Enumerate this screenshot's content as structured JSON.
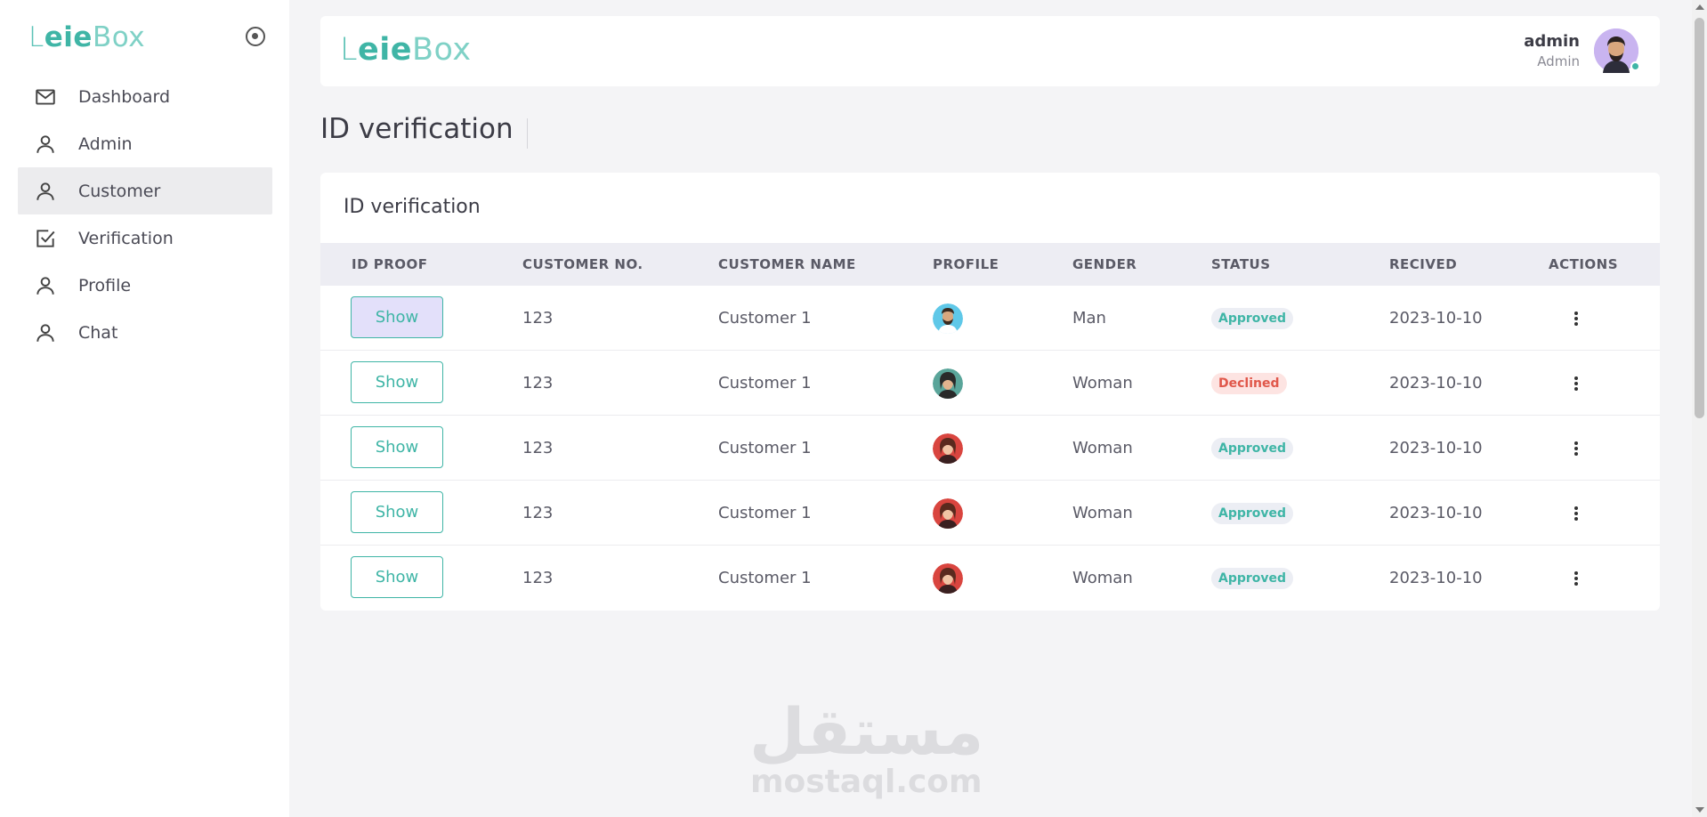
{
  "brand": {
    "logo_l": "L",
    "logo_eie": "eie",
    "logo_box": "Box"
  },
  "sidebar": {
    "items": [
      {
        "label": "Dashboard",
        "icon": "mail-icon"
      },
      {
        "label": "Admin",
        "icon": "user-icon"
      },
      {
        "label": "Customer",
        "icon": "user-icon",
        "active": true
      },
      {
        "label": "Verification",
        "icon": "checkbox-icon"
      },
      {
        "label": "Profile",
        "icon": "user-icon"
      },
      {
        "label": "Chat",
        "icon": "user-icon"
      }
    ]
  },
  "header": {
    "user_name": "admin",
    "user_role": "Admin"
  },
  "page": {
    "title": "ID verification"
  },
  "card": {
    "title": "ID verification",
    "columns": [
      "ID PROOF",
      "CUSTOMER NO.",
      "CUSTOMER NAME",
      "PROFILE",
      "GENDER",
      "STATUS",
      "RECIVED",
      "ACTIONS"
    ],
    "rows": [
      {
        "proof": "Show",
        "number": "123",
        "name": "Customer 1",
        "gender": "Man",
        "status": "Approved",
        "received": "2023-10-10"
      },
      {
        "proof": "Show",
        "number": "123",
        "name": "Customer 1",
        "gender": "Woman",
        "status": "Declined",
        "received": "2023-10-10"
      },
      {
        "proof": "Show",
        "number": "123",
        "name": "Customer 1",
        "gender": "Woman",
        "status": "Approved",
        "received": "2023-10-10"
      },
      {
        "proof": "Show",
        "number": "123",
        "name": "Customer 1",
        "gender": "Woman",
        "status": "Approved",
        "received": "2023-10-10"
      },
      {
        "proof": "Show",
        "number": "123",
        "name": "Customer 1",
        "gender": "Woman",
        "status": "Approved",
        "received": "2023-10-10"
      }
    ]
  },
  "watermark": {
    "arabic": "مستقل",
    "latin": "mostaql.com"
  },
  "colors": {
    "accent": "#3fb5a6",
    "approved": "#3fb5a6",
    "declined": "#e0574a",
    "active_button_bg": "#e3e0fa"
  }
}
